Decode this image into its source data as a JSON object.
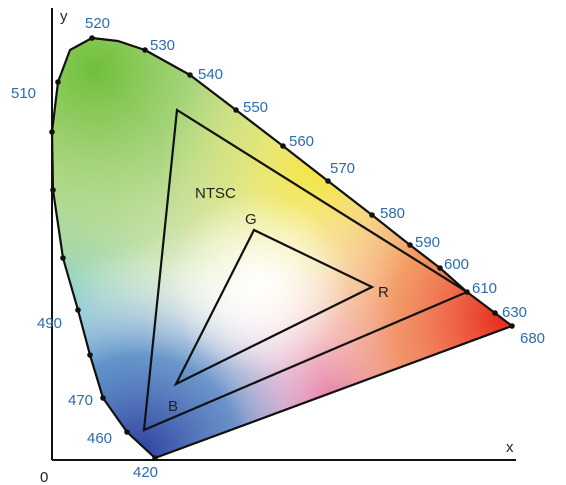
{
  "axes": {
    "x_label": "x",
    "y_label": "y",
    "origin_label": "0"
  },
  "spectral_locus": {
    "wavelength_labels": [
      "420",
      "460",
      "470",
      "490",
      "510",
      "520",
      "530",
      "540",
      "550",
      "560",
      "570",
      "580",
      "590",
      "600",
      "610",
      "630",
      "680"
    ]
  },
  "triangles": {
    "ntsc": {
      "label": "NTSC"
    },
    "inner": {
      "vertex_labels": {
        "red": "R",
        "green": "G",
        "blue": "B"
      }
    }
  }
}
